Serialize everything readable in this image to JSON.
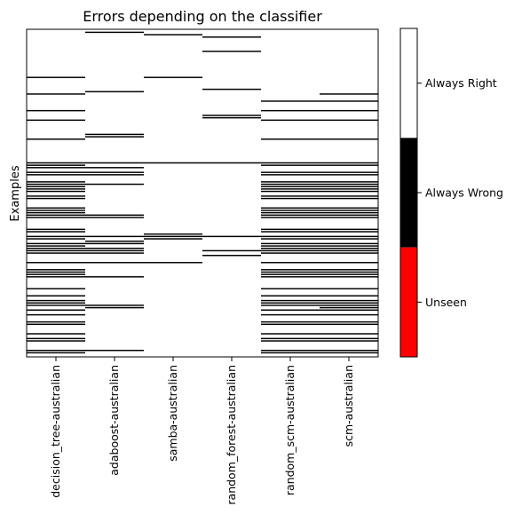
{
  "chart_data": {
    "type": "heatmap",
    "title": "Errors depending on the classifier",
    "xlabel": "",
    "ylabel": "Examples",
    "n_examples": 138,
    "classifiers": [
      "decision_tree-australian",
      "adaboost-australian",
      "samba-australian",
      "random_forest-australian",
      "random_scm-australian",
      "scm-australian"
    ],
    "colorbar": {
      "levels": [
        {
          "label": "Always Right",
          "color": "#ffffff"
        },
        {
          "label": "Always Wrong",
          "color": "#000000"
        },
        {
          "label": "Unseen",
          "color": "#ff0000"
        }
      ]
    },
    "error_rows": [
      [
        20,
        27,
        34,
        38,
        46,
        56,
        57,
        58,
        60,
        61,
        64,
        65,
        66,
        67,
        68,
        70,
        71,
        75,
        76,
        77,
        78,
        79,
        84,
        85,
        87,
        88,
        90,
        91,
        92,
        93,
        94,
        98,
        101,
        102,
        103,
        104,
        109,
        112,
        114,
        115,
        116,
        118,
        120,
        123,
        124,
        128,
        130,
        131,
        135,
        136
      ],
      [
        1,
        26,
        44,
        45,
        56,
        58,
        60,
        61,
        65,
        78,
        79,
        87,
        89,
        90,
        92,
        93,
        94,
        98,
        104,
        116,
        117,
        135
      ],
      [
        2,
        20,
        56,
        86,
        87,
        88,
        98
      ],
      [
        3,
        9,
        25,
        36,
        37,
        56,
        87,
        93,
        95
      ],
      [
        30,
        34,
        38,
        46,
        56,
        57,
        60,
        61,
        64,
        65,
        66,
        67,
        68,
        70,
        71,
        75,
        76,
        77,
        78,
        79,
        84,
        85,
        87,
        88,
        90,
        91,
        92,
        93,
        94,
        98,
        101,
        102,
        103,
        104,
        109,
        112,
        114,
        115,
        116,
        118,
        120,
        123,
        124,
        128,
        130,
        131,
        135,
        136
      ],
      [
        27,
        30,
        34,
        38,
        46,
        56,
        57,
        60,
        61,
        64,
        65,
        66,
        67,
        68,
        70,
        71,
        75,
        76,
        77,
        78,
        79,
        84,
        85,
        87,
        88,
        90,
        91,
        92,
        93,
        94,
        98,
        101,
        102,
        103,
        104,
        109,
        112,
        114,
        115,
        116,
        117,
        118,
        120,
        123,
        124,
        128,
        130,
        131,
        135,
        136
      ]
    ]
  }
}
